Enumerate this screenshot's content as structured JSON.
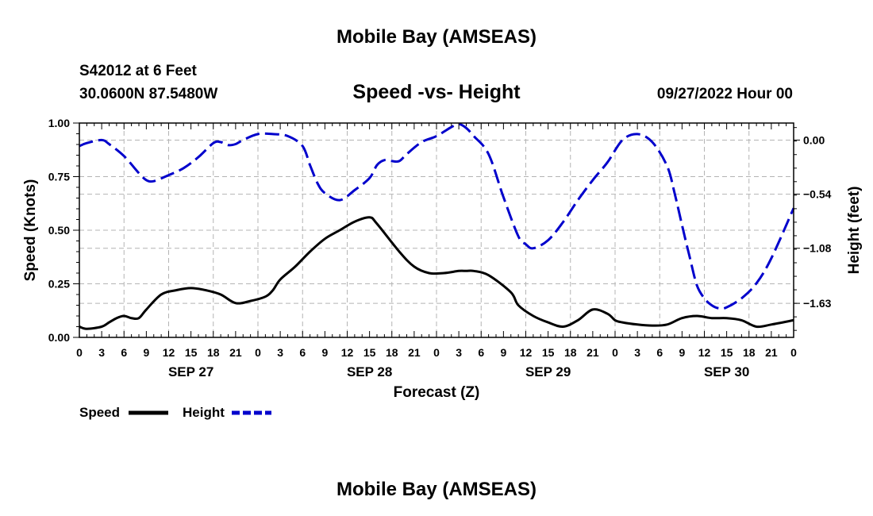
{
  "page_title": "Mobile Bay (AMSEAS)",
  "footer_title": "Mobile Bay (AMSEAS)",
  "station": {
    "line1": "S42012 at 6 Feet",
    "line2": "30.0600N  87.5480W"
  },
  "timestamp": "09/27/2022 Hour 00",
  "colors": {
    "speed": "#000000",
    "height": "#0000cc",
    "grid": "#b4b4b4"
  },
  "chart_data": {
    "type": "line",
    "title": "Speed -vs- Height",
    "xlabel": "Forecast (Z)",
    "ylabel_left": "Speed (Knots)",
    "ylabel_right": "Height (feet)",
    "x_unit": "forecast hour from 09/27/2022 00Z",
    "xlim": [
      0,
      96
    ],
    "ylim_left": [
      0,
      1
    ],
    "ylim_right": [
      -1.97,
      0.17
    ],
    "x_tick_labels": [
      "0",
      "3",
      "6",
      "9",
      "12",
      "15",
      "18",
      "21",
      "0",
      "3",
      "6",
      "9",
      "12",
      "15",
      "18",
      "21",
      "0",
      "3",
      "6",
      "9",
      "12",
      "15",
      "18",
      "21",
      "0",
      "3",
      "6",
      "9",
      "12",
      "15",
      "18",
      "21",
      "0"
    ],
    "day_labels": [
      "SEP 27",
      "SEP 28",
      "SEP 29",
      "SEP 30"
    ],
    "y_left_ticks": [
      "0.00",
      "0.25",
      "0.50",
      "0.75",
      "1.00"
    ],
    "y_right_ticks": [
      "0.00",
      "−0.54",
      "−1.08",
      "−1.63"
    ],
    "y_right_tick_values": [
      0.0,
      -0.54,
      -1.08,
      -1.63
    ],
    "grid": true,
    "legend_position": "bottom-left",
    "series": [
      {
        "name": "Speed",
        "axis": "left",
        "style": "solid",
        "x": [
          0,
          1,
          3,
          4,
          5,
          6,
          7,
          8,
          9,
          11,
          13,
          15,
          17,
          19,
          21,
          23,
          25,
          26,
          27,
          29,
          31,
          33,
          35,
          37,
          39,
          40,
          43,
          45,
          47,
          49,
          51,
          52,
          53,
          55,
          58,
          59,
          61,
          63,
          65,
          67,
          69,
          71,
          72,
          73,
          75,
          77,
          79,
          81,
          83,
          85,
          87,
          89,
          91,
          93,
          96
        ],
        "y": [
          0.05,
          0.04,
          0.05,
          0.07,
          0.09,
          0.1,
          0.09,
          0.09,
          0.13,
          0.2,
          0.22,
          0.23,
          0.22,
          0.2,
          0.16,
          0.17,
          0.19,
          0.22,
          0.27,
          0.33,
          0.4,
          0.46,
          0.5,
          0.54,
          0.56,
          0.53,
          0.4,
          0.33,
          0.3,
          0.3,
          0.31,
          0.31,
          0.31,
          0.29,
          0.21,
          0.15,
          0.1,
          0.07,
          0.05,
          0.08,
          0.13,
          0.11,
          0.08,
          0.07,
          0.06,
          0.055,
          0.06,
          0.09,
          0.1,
          0.09,
          0.09,
          0.08,
          0.05,
          0.06,
          0.08
        ]
      },
      {
        "name": "Height",
        "axis": "right",
        "style": "dashed",
        "x": [
          0,
          1,
          3,
          4,
          6,
          8,
          9,
          10,
          12,
          14,
          16,
          18,
          19,
          20,
          21,
          22,
          24,
          26,
          28,
          30,
          31,
          32,
          33,
          35,
          37,
          39,
          40,
          41,
          42,
          43,
          44,
          46,
          48,
          50,
          51,
          52,
          53,
          55,
          57,
          59,
          60,
          61,
          63,
          65,
          67,
          69,
          71,
          73,
          75,
          77,
          79,
          80,
          81,
          82,
          83,
          84,
          85,
          86,
          87,
          89,
          91,
          93,
          96
        ],
        "y": [
          -0.06,
          -0.03,
          0.0,
          -0.04,
          -0.16,
          -0.33,
          -0.4,
          -0.41,
          -0.35,
          -0.28,
          -0.17,
          -0.03,
          -0.02,
          -0.05,
          -0.04,
          0.0,
          0.06,
          0.06,
          0.04,
          -0.06,
          -0.25,
          -0.43,
          -0.53,
          -0.6,
          -0.5,
          -0.38,
          -0.25,
          -0.2,
          -0.21,
          -0.21,
          -0.14,
          -0.02,
          0.04,
          0.13,
          0.16,
          0.12,
          0.04,
          -0.14,
          -0.57,
          -0.96,
          -1.04,
          -1.08,
          -1.0,
          -0.82,
          -0.6,
          -0.4,
          -0.22,
          0.0,
          0.06,
          -0.02,
          -0.26,
          -0.53,
          -0.85,
          -1.16,
          -1.45,
          -1.58,
          -1.65,
          -1.68,
          -1.67,
          -1.58,
          -1.43,
          -1.18,
          -0.68
        ]
      }
    ]
  }
}
